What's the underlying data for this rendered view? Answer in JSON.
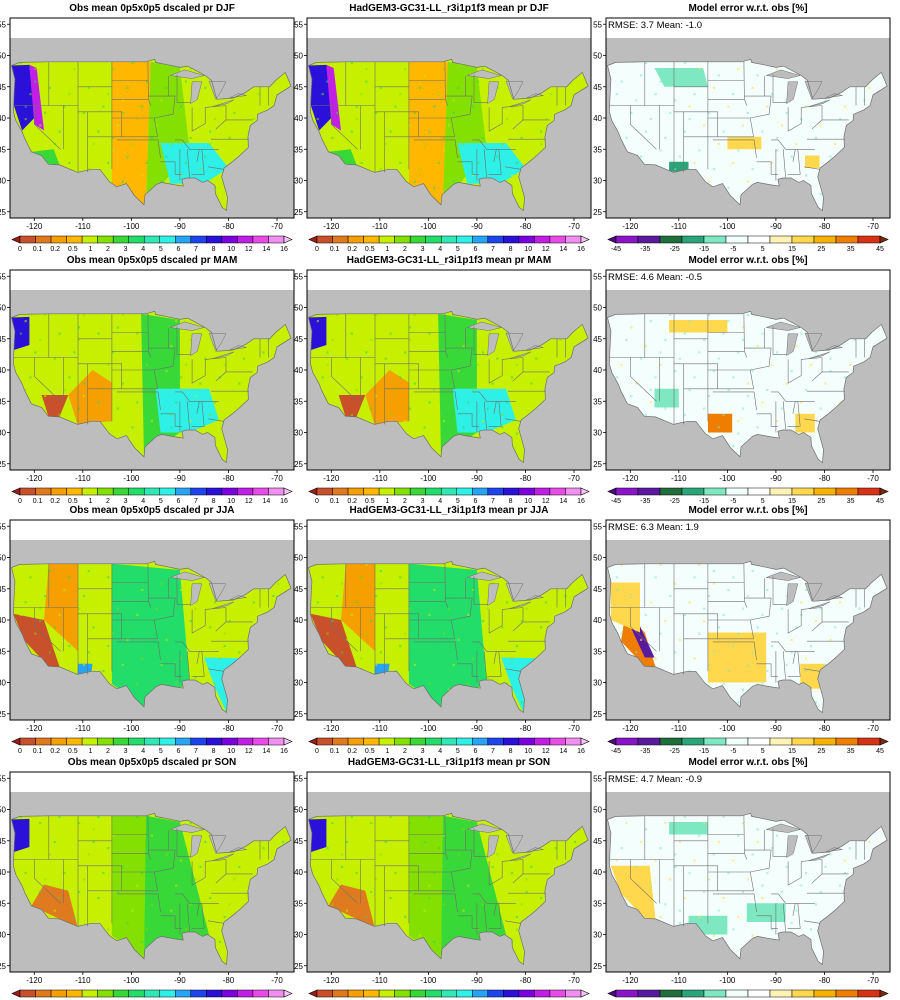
{
  "figure": {
    "panel_titles": [
      [
        "Obs mean 0p5x0p5 dscaled pr DJF",
        "HadGEM3-GC31-LL_r3i1p1f3 mean pr DJF",
        "Model error w.r.t. obs [%]"
      ],
      [
        "Obs mean 0p5x0p5 dscaled pr MAM",
        "HadGEM3-GC31-LL_r3i1p1f3 mean pr MAM",
        "Model error w.r.t. obs [%]"
      ],
      [
        "Obs mean 0p5x0p5 dscaled pr JJA",
        "HadGEM3-GC31-LL_r3i1p1f3 mean pr JJA",
        "Model error w.r.t. obs [%]"
      ],
      [
        "Obs mean 0p5x0p5 dscaled pr SON",
        "HadGEM3-GC31-LL_r3i1p1f3 mean pr SON",
        "Model error w.r.t. obs [%]"
      ]
    ],
    "error_stats": [
      "RMSE: 3.7  Mean: -1.0",
      "RMSE: 4.6  Mean: -0.5",
      "RMSE: 6.3  Mean: 1.9",
      "RMSE: 4.7  Mean: -0.9"
    ]
  },
  "chart_data": {
    "type": "heatmap",
    "layout": "4 rows x 3 columns of maps over the contiguous United States",
    "seasons": [
      "DJF",
      "MAM",
      "JJA",
      "SON"
    ],
    "columns": [
      "observations",
      "model",
      "model error"
    ],
    "x_ticks": [
      "-120",
      "-110",
      "-100",
      "-90",
      "-80",
      "-70"
    ],
    "y_ticks": [
      "25",
      "30",
      "35",
      "40",
      "45",
      "50",
      "55"
    ],
    "x_range": [
      -125,
      -66.5
    ],
    "y_range": [
      24,
      56
    ],
    "precip_colorbar": {
      "labels": [
        "0",
        "0.1",
        "0.2",
        "0.5",
        "1",
        "2",
        "3",
        "4",
        "5",
        "6",
        "7",
        "8",
        "10",
        "12",
        "14",
        "16"
      ],
      "colors": [
        "#9b1c1c",
        "#c8502a",
        "#e07a1f",
        "#f5a000",
        "#ffb700",
        "#c6f000",
        "#84e000",
        "#38d838",
        "#22dd6a",
        "#30e8b4",
        "#2ff0e6",
        "#27a4f5",
        "#1e44ee",
        "#2a10d8",
        "#7a00e0",
        "#c11ee6",
        "#e84be8",
        "#f08ff0",
        "#f5c5f5"
      ]
    },
    "error_colorbar": {
      "labels": [
        "-45",
        "-35",
        "-25",
        "-15",
        "-5",
        "5",
        "15",
        "25",
        "35",
        "45"
      ],
      "colors": [
        "#4b0a7d",
        "#8a14c8",
        "#5a1aa0",
        "#1f6e3c",
        "#2aa57a",
        "#7ee8c2",
        "#f0fffc",
        "#ffffff",
        "#fff2b5",
        "#ffd84d",
        "#f7b200",
        "#ef7d00",
        "#d63216",
        "#7a2a10"
      ]
    },
    "colors": {
      "land_mask": "#bdbdbd",
      "border": "#6e6e6e"
    }
  }
}
